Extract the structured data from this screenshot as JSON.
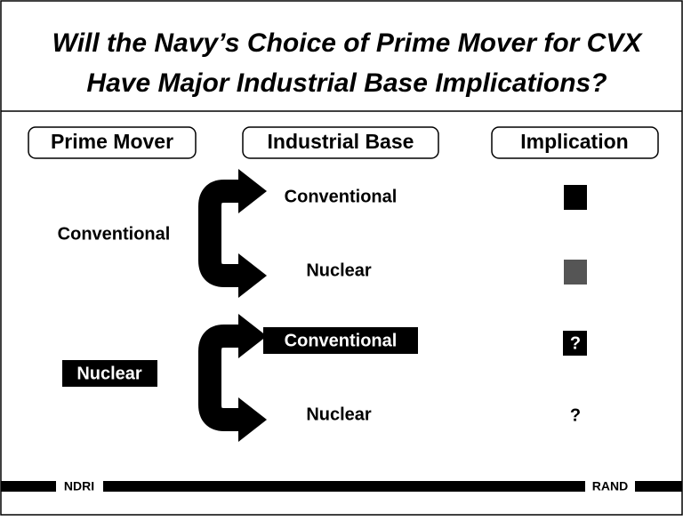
{
  "title": {
    "lines": [
      "Will the Navy’s Choice of Prime Mover for CVX",
      "Have Major Industrial Base Implications?"
    ]
  },
  "headers": [
    "Prime Mover",
    "Industrial Base",
    "Implication"
  ],
  "groups": [
    {
      "prime_mover": "Conventional",
      "branches": [
        {
          "industrial_base": "Conventional"
        },
        {
          "industrial_base": "Nuclear"
        }
      ]
    },
    {
      "prime_mover": "Nuclear",
      "branches": [
        {
          "industrial_base": "Conventional",
          "implication": "?"
        },
        {
          "industrial_base": "Nuclear",
          "implication": "?"
        }
      ]
    }
  ],
  "footer": {
    "left": "NDRI",
    "right": "RAND"
  }
}
